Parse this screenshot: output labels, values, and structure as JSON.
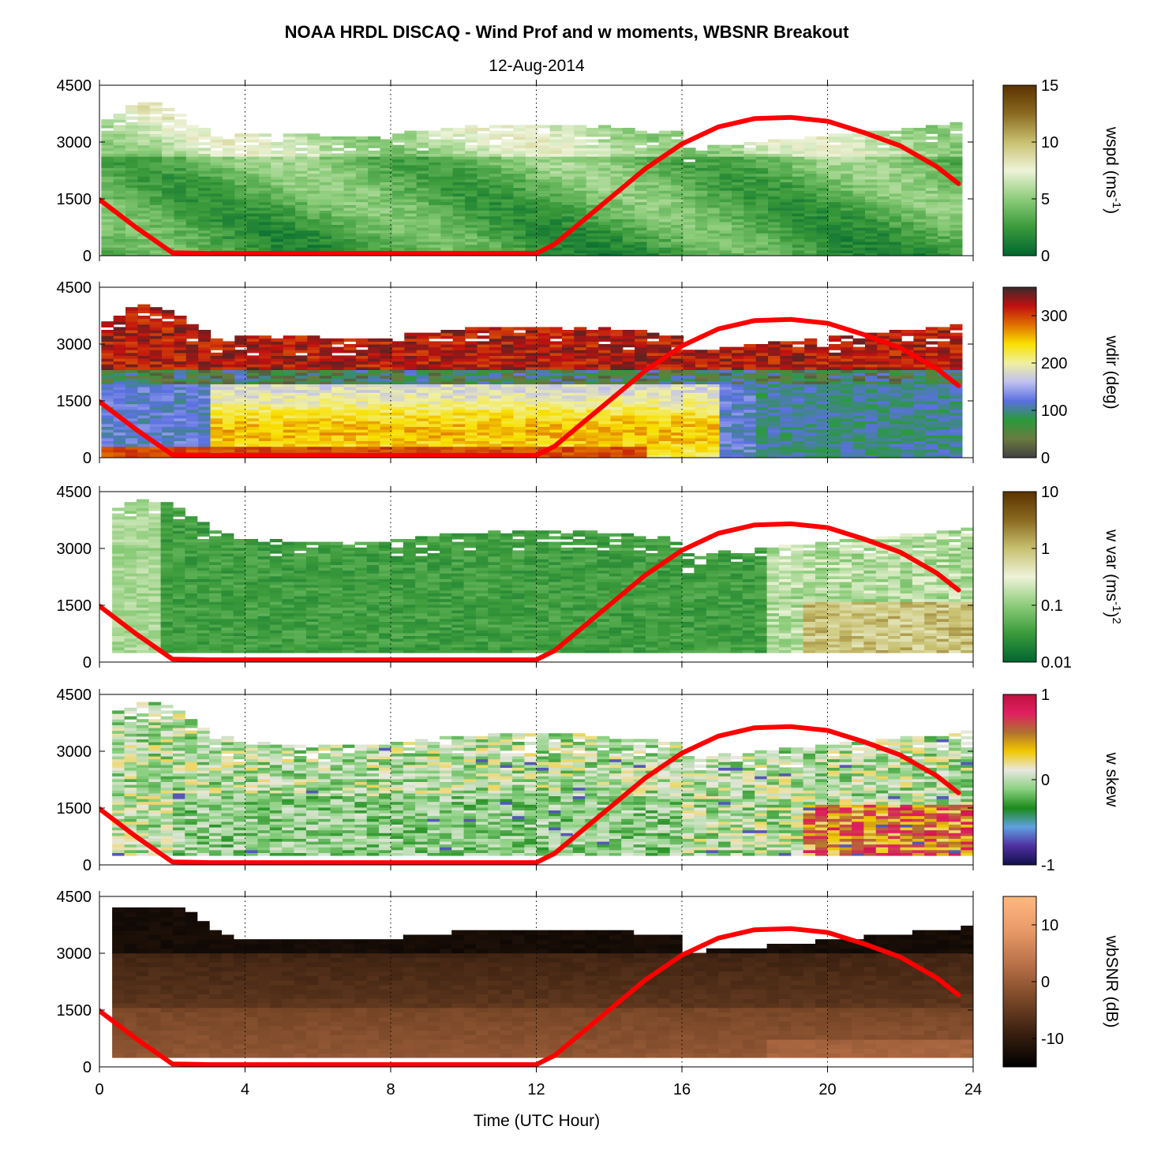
{
  "title": "NOAA HRDL DISCAQ - Wind Prof and w moments, WBSNR Breakout",
  "subtitle": "12-Aug-2014",
  "xlabel": "Time (UTC Hour)",
  "chart_data": {
    "type": "heatmap",
    "x_ticks": [
      0,
      4,
      8,
      12,
      16,
      20,
      24
    ],
    "xlim": [
      0,
      24
    ],
    "y_ticks": [
      0,
      1500,
      3000,
      4500
    ],
    "ylim": [
      0,
      4500
    ],
    "grid": "vertical dotted at x ticks",
    "overlay_line": {
      "color": "#ff0000",
      "x": [
        0,
        1,
        2,
        3,
        4,
        6,
        8,
        10,
        12,
        12.5,
        13,
        14,
        15,
        16,
        17,
        18,
        19,
        20,
        21,
        22,
        23,
        23.6
      ],
      "y": [
        1480,
        750,
        80,
        60,
        60,
        60,
        60,
        60,
        60,
        300,
        700,
        1500,
        2300,
        2950,
        3400,
        3620,
        3650,
        3550,
        3250,
        2900,
        2350,
        1900
      ]
    },
    "panels": [
      {
        "name": "wspd",
        "cbar_label_main": "wspd (ms",
        "cbar_label_sup": "-1",
        "cbar_label_end": ")",
        "cbar_ticks": [
          "0",
          "5",
          "10",
          "15"
        ],
        "cbar_scale": "linear",
        "cbar_range": [
          0,
          15
        ],
        "colors": [
          "#006630",
          "#3a9a3a",
          "#8ccc7a",
          "#eef3d8",
          "#c8c070",
          "#8a6a20",
          "#5a3200"
        ]
      },
      {
        "name": "wdir",
        "cbar_label_main": "wdir (deg)",
        "cbar_label_sup": "",
        "cbar_label_end": "",
        "cbar_ticks": [
          "0",
          "100",
          "200",
          "300"
        ],
        "cbar_scale": "linear",
        "cbar_range": [
          0,
          360
        ],
        "colors": [
          "#404040",
          "#6a7a40",
          "#2a9a3a",
          "#5a70e0",
          "#c0c0f0",
          "#f0f0a0",
          "#f8e000",
          "#e07000",
          "#c01010",
          "#3a2a2a"
        ]
      },
      {
        "name": "w var",
        "cbar_label_main": "w var (ms",
        "cbar_label_sup": "-1",
        "cbar_label_end": ")",
        "cbar_label_sup2": "2",
        "cbar_ticks": [
          "0.01",
          "0.1",
          "1",
          "10"
        ],
        "cbar_scale": "log",
        "cbar_range": [
          0.01,
          10
        ],
        "colors": [
          "#006630",
          "#3a9a3a",
          "#8ccc7a",
          "#eef3d8",
          "#c8c070",
          "#8a6a20",
          "#5a3200"
        ]
      },
      {
        "name": "w skew",
        "cbar_label_main": "w skew",
        "cbar_label_sup": "",
        "cbar_label_end": "",
        "cbar_ticks": [
          "-1",
          "0",
          "1"
        ],
        "cbar_scale": "linear",
        "cbar_range": [
          -1,
          1
        ],
        "colors": [
          "#10104a",
          "#5030a0",
          "#60a0e0",
          "#1a8a1a",
          "#8ad080",
          "#e8e8e0",
          "#f0c800",
          "#b07030",
          "#e02060",
          "#c01040"
        ]
      },
      {
        "name": "wbSNR",
        "cbar_label_main": "wbSNR (dB)",
        "cbar_label_sup": "",
        "cbar_label_end": "",
        "cbar_ticks": [
          "-10",
          "0",
          "10"
        ],
        "cbar_scale": "linear",
        "cbar_range": [
          -15,
          15
        ],
        "colors": [
          "#000000",
          "#3a2010",
          "#7a4828",
          "#b87048",
          "#e89a68",
          "#ffb880"
        ]
      }
    ]
  }
}
